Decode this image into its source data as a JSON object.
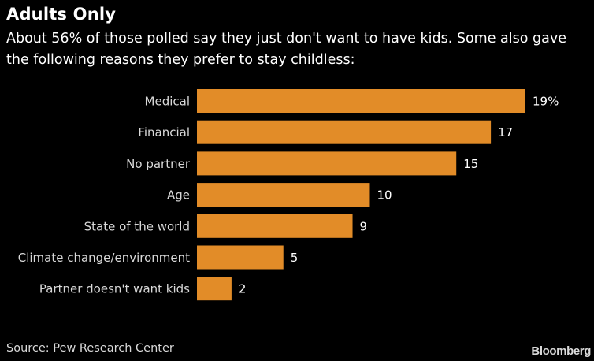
{
  "header": {
    "title": "Adults Only",
    "subtitle": "About 56% of those polled say they just don't want to have kids. Some also gave the following reasons they prefer to stay childless:"
  },
  "chart_data": {
    "type": "bar",
    "orientation": "horizontal",
    "title": "Adults Only",
    "subtitle": "About 56% of those polled say they just don't want to have kids. Some also gave the following reasons they prefer to stay childless:",
    "categories": [
      "Medical",
      "Financial",
      "No partner",
      "Age",
      "State of the world",
      "Climate change/environment",
      "Partner doesn't want kids"
    ],
    "values": [
      19,
      17,
      15,
      10,
      9,
      5,
      2
    ],
    "value_labels": [
      "19%",
      "17",
      "15",
      "10",
      "9",
      "5",
      "2"
    ],
    "unit": "%",
    "xlim": [
      0,
      19
    ],
    "grid": false,
    "bar_color": "#e28c28"
  },
  "footer": {
    "source": "Source: Pew Research Center",
    "brand": "Bloomberg"
  },
  "colors": {
    "background": "#000000",
    "text": "#ffffff",
    "bar": "#e28c28"
  }
}
